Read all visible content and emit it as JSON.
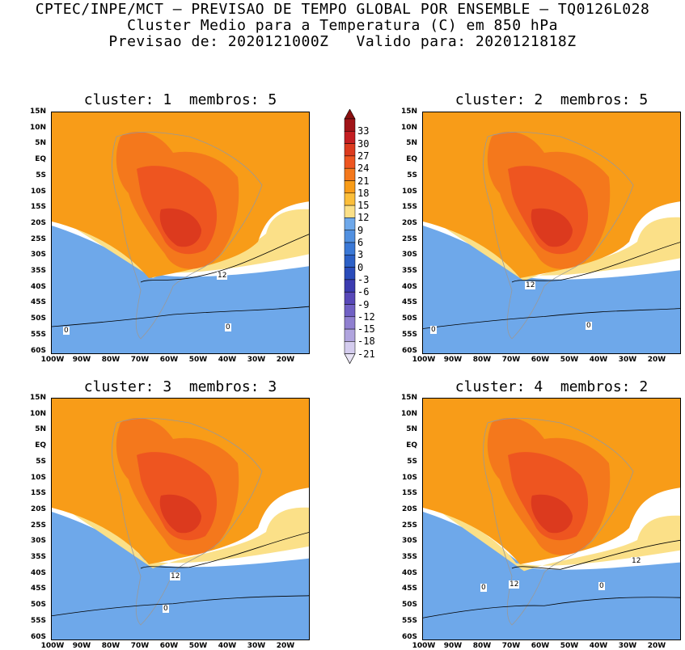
{
  "header": {
    "line1": "CPTEC/INPE/MCT – PREVISAO DE TEMPO GLOBAL POR ENSEMBLE – TQ0126L028",
    "line2": "Cluster Medio para a Temperatura (C) em 850 hPa",
    "line3": "Previsao de: 2020121000Z   Valido para: 2020121818Z"
  },
  "panels": [
    {
      "title": "cluster: 1  membros: 5",
      "labels": [
        "12",
        "0",
        "0"
      ]
    },
    {
      "title": "cluster: 2  membros: 5",
      "labels": [
        "12",
        "0",
        "0"
      ]
    },
    {
      "title": "cluster: 3  membros: 3",
      "labels": [
        "12",
        "0"
      ]
    },
    {
      "title": "cluster: 4  membros: 2",
      "labels": [
        "12",
        "12",
        "0",
        "0"
      ]
    }
  ],
  "axes": {
    "lat": [
      "15N",
      "10N",
      "5N",
      "EQ",
      "5S",
      "10S",
      "15S",
      "20S",
      "25S",
      "30S",
      "35S",
      "40S",
      "45S",
      "50S",
      "55S",
      "60S"
    ],
    "lon": [
      "100W",
      "90W",
      "80W",
      "70W",
      "60W",
      "50W",
      "40W",
      "30W",
      "20W"
    ]
  },
  "colorbar": {
    "labels": [
      "33",
      "30",
      "27",
      "24",
      "21",
      "18",
      "15",
      "12",
      "9",
      "6",
      "3",
      "0",
      "-3",
      "-6",
      "-9",
      "-12",
      "-15",
      "-18",
      "-21"
    ],
    "colors": [
      "#a01418",
      "#c41e22",
      "#dc3a1e",
      "#ee5520",
      "#f4781c",
      "#f89c18",
      "#fbbe3a",
      "#fbe088",
      "#6ea8ea",
      "#5190e0",
      "#3a78d6",
      "#2c60c6",
      "#2a4cba",
      "#3c3cb0",
      "#5848b8",
      "#7060c4",
      "#9080d0",
      "#b0a4de",
      "#d4ccee"
    ]
  },
  "colors": {
    "warm1": "#f89c18",
    "warm2": "#f4781c",
    "warm3": "#ee5520",
    "warm4": "#dc3a1e",
    "pale": "#fbe088",
    "cool1": "#6ea8ea",
    "cool2": "#3a78d6",
    "cool3": "#2c60c6",
    "cool4": "#3c3cb0"
  }
}
